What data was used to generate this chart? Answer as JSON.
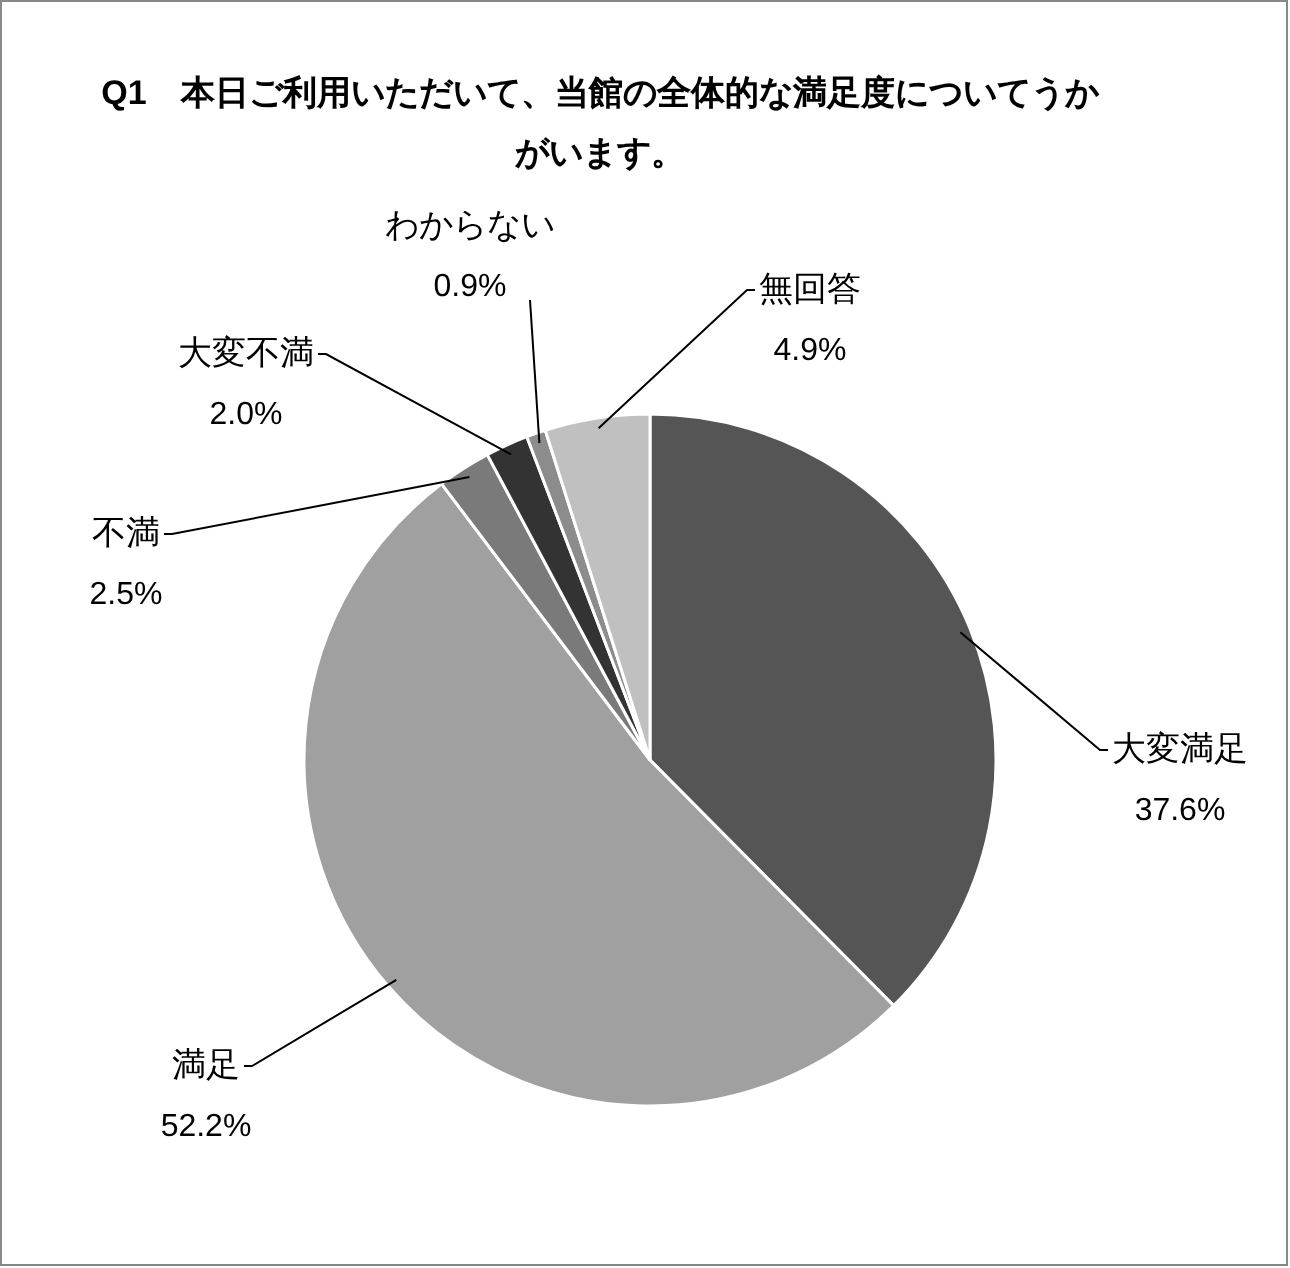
{
  "chart_data": {
    "type": "pie",
    "title": "Q1　本日ご利用いただいて、当館の全体的な満足度についてうかがいます。",
    "categories": [
      "大変満足",
      "満足",
      "不満",
      "大変不満",
      "わからない",
      "無回答"
    ],
    "values": [
      37.6,
      52.2,
      2.5,
      2.0,
      0.9,
      4.9
    ],
    "colors": [
      "#555555",
      "#a0a0a0",
      "#7a7a7a",
      "#333333",
      "#8c8c8c",
      "#c0c0c0"
    ],
    "value_labels": [
      "37.6%",
      "52.2%",
      "2.5%",
      "2.0%",
      "0.9%",
      "4.9%"
    ]
  }
}
